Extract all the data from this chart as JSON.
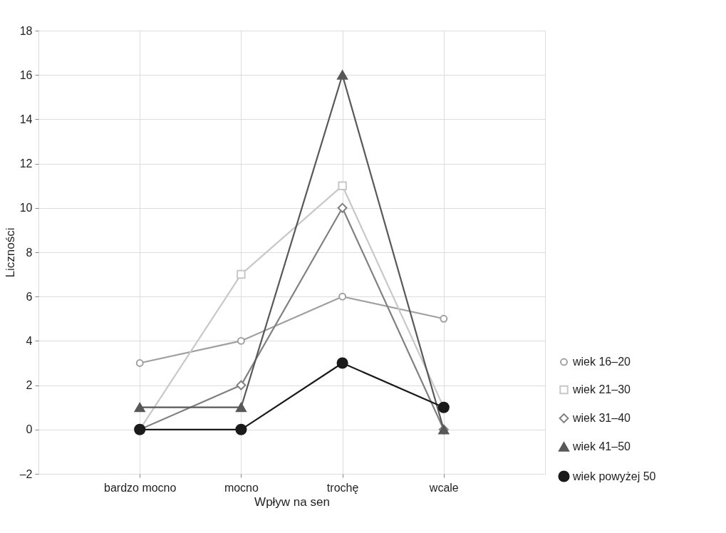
{
  "chart_data": {
    "type": "line",
    "xlabel": "Wpływ na sen",
    "ylabel": "Liczności",
    "categories": [
      "bardzo mocno",
      "mocno",
      "trochę",
      "wcale"
    ],
    "series": [
      {
        "name": "wiek 16–20",
        "color": "#a0a0a0",
        "marker": "circle",
        "values": [
          3,
          4,
          6,
          5
        ]
      },
      {
        "name": "wiek 21–30",
        "color": "#c8c8c8",
        "marker": "square",
        "values": [
          0,
          7,
          11,
          1
        ]
      },
      {
        "name": "wiek 31–40",
        "color": "#808080",
        "marker": "diamond",
        "values": [
          0,
          2,
          10,
          0
        ]
      },
      {
        "name": "wiek 41–50",
        "color": "#585858",
        "marker": "triangle",
        "values": [
          1,
          1,
          16,
          0
        ]
      },
      {
        "name": "wiek powyżej 50",
        "color": "#1a1a1a",
        "marker": "circle",
        "values": [
          0,
          0,
          3,
          1
        ]
      }
    ],
    "ylim": [
      -2,
      18
    ],
    "yticks": [
      {
        "value": -2,
        "label": "–2"
      },
      0,
      2,
      4,
      6,
      8,
      10,
      12,
      14,
      16,
      18
    ],
    "grid": true,
    "legend": "right",
    "line_style": "solid"
  }
}
